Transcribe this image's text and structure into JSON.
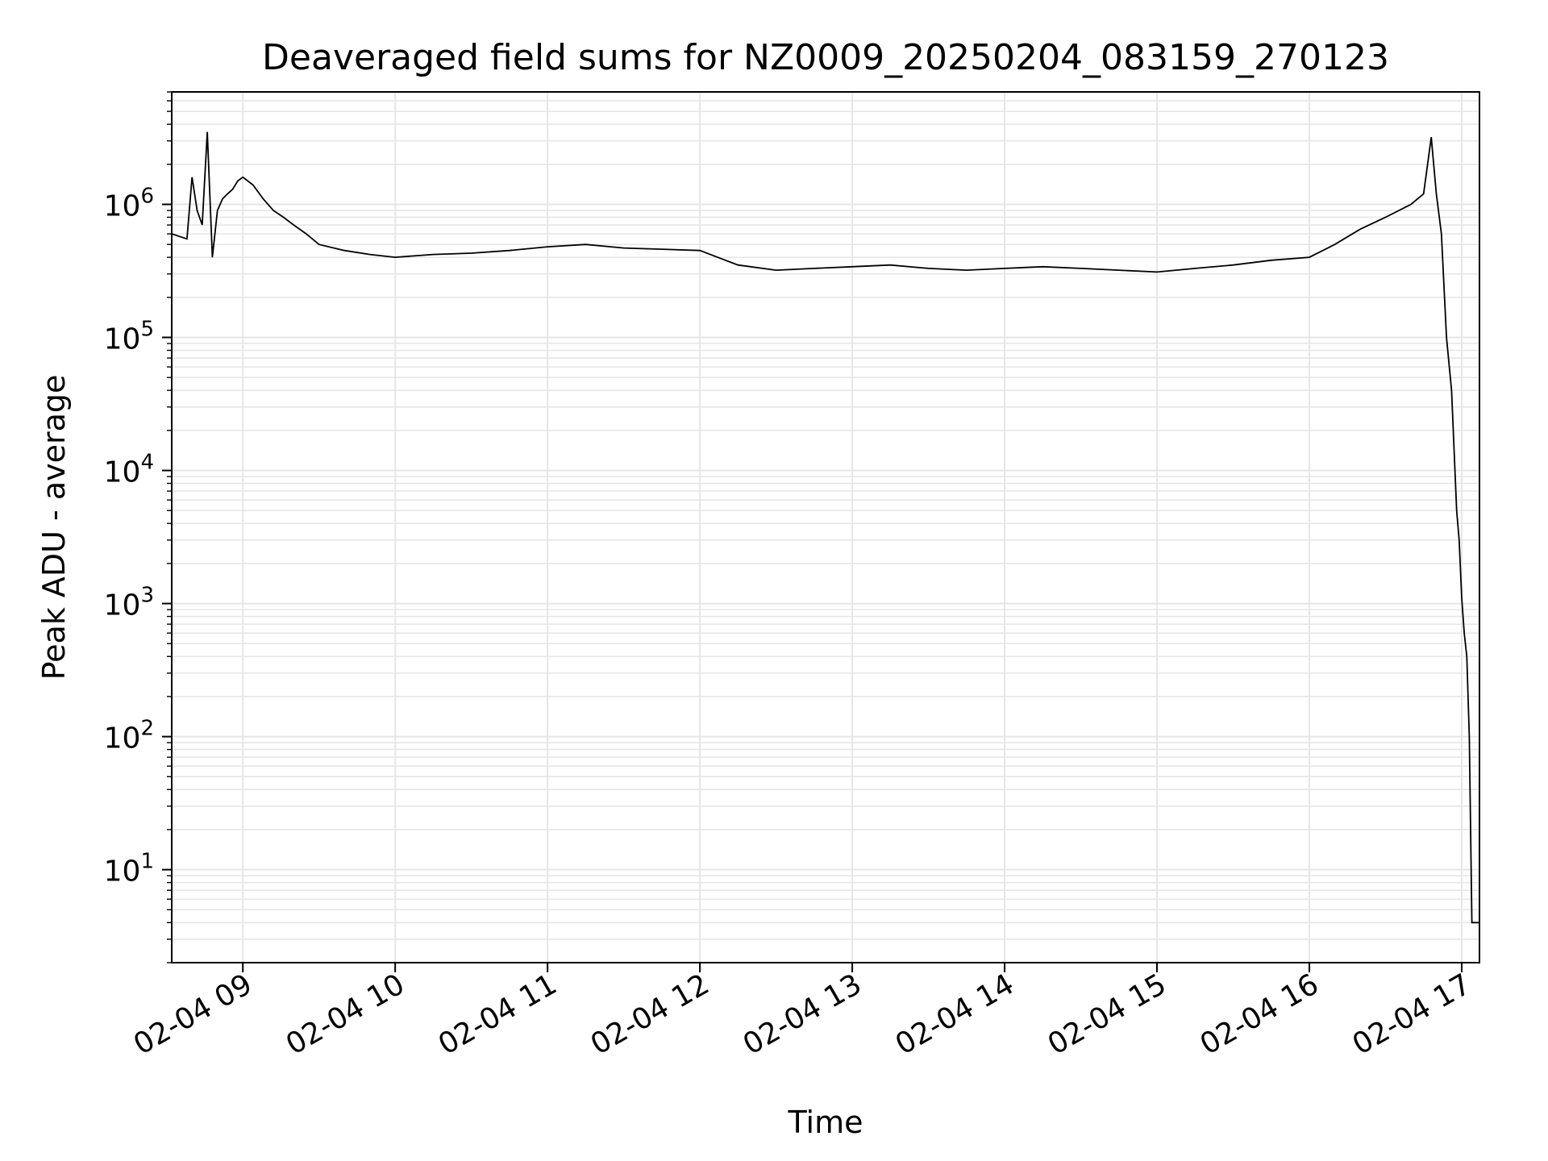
{
  "chart_data": {
    "type": "line",
    "title": "Deaveraged field sums for NZ0009_20250204_083159_270123",
    "xlabel": "Time",
    "ylabel": "Peak ADU - average",
    "yscale": "log",
    "ylim": [
      2,
      7000000
    ],
    "xlim": [
      "2025-02-04 08:32",
      "2025-02-04 17:07"
    ],
    "x_ticks": [
      {
        "value": "2025-02-04 09:00",
        "label": "02-04 09"
      },
      {
        "value": "2025-02-04 10:00",
        "label": "02-04 10"
      },
      {
        "value": "2025-02-04 11:00",
        "label": "02-04 11"
      },
      {
        "value": "2025-02-04 12:00",
        "label": "02-04 12"
      },
      {
        "value": "2025-02-04 13:00",
        "label": "02-04 13"
      },
      {
        "value": "2025-02-04 14:00",
        "label": "02-04 14"
      },
      {
        "value": "2025-02-04 15:00",
        "label": "02-04 15"
      },
      {
        "value": "2025-02-04 16:00",
        "label": "02-04 16"
      },
      {
        "value": "2025-02-04 17:00",
        "label": "02-04 17"
      }
    ],
    "y_ticks": [
      {
        "value": 10,
        "base": "10",
        "exp": "1"
      },
      {
        "value": 100,
        "base": "10",
        "exp": "2"
      },
      {
        "value": 1000,
        "base": "10",
        "exp": "3"
      },
      {
        "value": 10000,
        "base": "10",
        "exp": "4"
      },
      {
        "value": 100000,
        "base": "10",
        "exp": "5"
      },
      {
        "value": 1000000,
        "base": "10",
        "exp": "6"
      }
    ],
    "grid": true,
    "line_color": "#000000",
    "grid_color": "#e6e6e6",
    "series": [
      {
        "x": [
          "2025-02-04 08:32",
          "2025-02-04 08:38",
          "2025-02-04 08:40",
          "2025-02-04 08:42",
          "2025-02-04 08:44",
          "2025-02-04 08:46",
          "2025-02-04 08:48",
          "2025-02-04 08:50",
          "2025-02-04 08:52",
          "2025-02-04 08:54",
          "2025-02-04 08:56",
          "2025-02-04 08:58",
          "2025-02-04 09:00",
          "2025-02-04 09:04",
          "2025-02-04 09:08",
          "2025-02-04 09:12",
          "2025-02-04 09:16",
          "2025-02-04 09:20",
          "2025-02-04 09:25",
          "2025-02-04 09:30",
          "2025-02-04 09:40",
          "2025-02-04 09:50",
          "2025-02-04 10:00",
          "2025-02-04 10:15",
          "2025-02-04 10:30",
          "2025-02-04 10:45",
          "2025-02-04 11:00",
          "2025-02-04 11:15",
          "2025-02-04 11:30",
          "2025-02-04 11:45",
          "2025-02-04 12:00",
          "2025-02-04 12:15",
          "2025-02-04 12:30",
          "2025-02-04 12:45",
          "2025-02-04 13:00",
          "2025-02-04 13:15",
          "2025-02-04 13:30",
          "2025-02-04 13:45",
          "2025-02-04 14:00",
          "2025-02-04 14:15",
          "2025-02-04 14:30",
          "2025-02-04 14:45",
          "2025-02-04 15:00",
          "2025-02-04 15:15",
          "2025-02-04 15:30",
          "2025-02-04 15:45",
          "2025-02-04 16:00",
          "2025-02-04 16:10",
          "2025-02-04 16:20",
          "2025-02-04 16:30",
          "2025-02-04 16:40",
          "2025-02-04 16:45",
          "2025-02-04 16:48",
          "2025-02-04 16:50",
          "2025-02-04 16:52",
          "2025-02-04 16:54",
          "2025-02-04 16:56",
          "2025-02-04 16:58",
          "2025-02-04 16:59",
          "2025-02-04 17:00",
          "2025-02-04 17:01",
          "2025-02-04 17:02",
          "2025-02-04 17:03",
          "2025-02-04 17:04",
          "2025-02-04 17:05",
          "2025-02-04 17:07"
        ],
        "y": [
          600000,
          550000,
          1600000,
          900000,
          700000,
          3500000,
          400000,
          900000,
          1100000,
          1200000,
          1300000,
          1500000,
          1600000,
          1400000,
          1100000,
          900000,
          800000,
          700000,
          600000,
          500000,
          450000,
          420000,
          400000,
          420000,
          430000,
          450000,
          480000,
          500000,
          470000,
          460000,
          450000,
          350000,
          320000,
          330000,
          340000,
          350000,
          330000,
          320000,
          330000,
          340000,
          330000,
          320000,
          310000,
          330000,
          350000,
          380000,
          400000,
          500000,
          650000,
          800000,
          1000000,
          1200000,
          3200000,
          1200000,
          600000,
          100000,
          40000,
          5000,
          3000,
          1100,
          600,
          400,
          100,
          4,
          4,
          4
        ]
      }
    ]
  }
}
